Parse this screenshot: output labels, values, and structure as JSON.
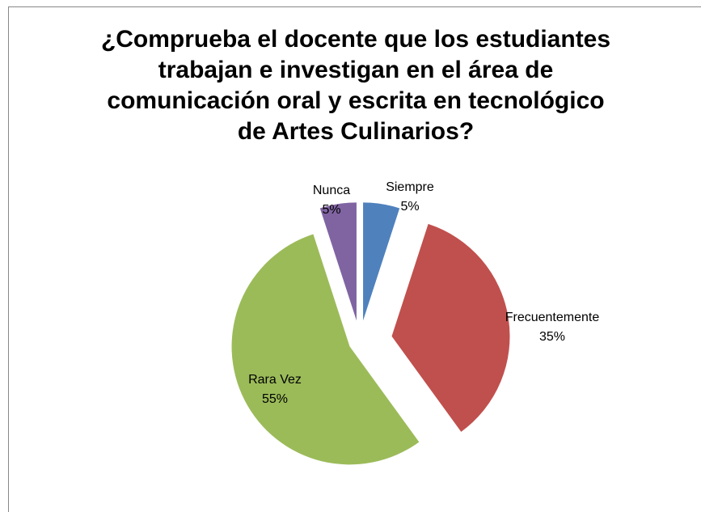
{
  "chart_data": {
    "type": "pie",
    "title": "¿Comprueba el docente que los estudiantes trabajan e investigan en el área de comunicación oral y escrita en tecnológico de Artes Culinarios?",
    "categories": [
      "Siempre",
      "Frecuentemente",
      "Rara Vez",
      "Nunca"
    ],
    "values": [
      5,
      35,
      55,
      5
    ],
    "value_labels": [
      "5%",
      "35%",
      "55%",
      "5%"
    ],
    "colors": [
      "#4f81bd",
      "#c0504d",
      "#9bbb59",
      "#8064a2"
    ]
  }
}
